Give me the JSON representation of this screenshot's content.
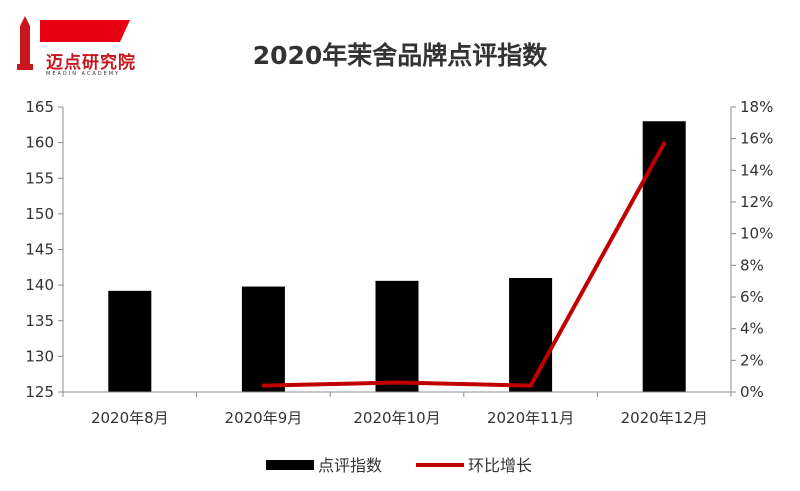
{
  "logo": {
    "text": "迈点研究院",
    "subtext": "MEADIN ACADEMY",
    "accent_color": "#e60012"
  },
  "chart_data": {
    "type": "bar",
    "title": "2020年茉舍品牌点评指数",
    "categories": [
      "2020年8月",
      "2020年9月",
      "2020年10月",
      "2020年11月",
      "2020年12月"
    ],
    "series": [
      {
        "name": "点评指数",
        "type": "bar",
        "axis": "left",
        "color": "#000000",
        "values": [
          139.2,
          139.8,
          140.6,
          141.0,
          163.0
        ]
      },
      {
        "name": "环比增长",
        "type": "line",
        "axis": "right",
        "color": "#c00000",
        "values": [
          null,
          0.4,
          0.6,
          0.4,
          15.7
        ]
      }
    ],
    "ylim_left": [
      125,
      165
    ],
    "yticks_left": [
      "125",
      "130",
      "135",
      "140",
      "145",
      "150",
      "155",
      "160",
      "165"
    ],
    "ylim_right": [
      0,
      18
    ],
    "yticks_right": [
      "0%",
      "2%",
      "4%",
      "6%",
      "8%",
      "10%",
      "12%",
      "14%",
      "16%",
      "18%"
    ],
    "grid": false,
    "legend": "bottom"
  }
}
